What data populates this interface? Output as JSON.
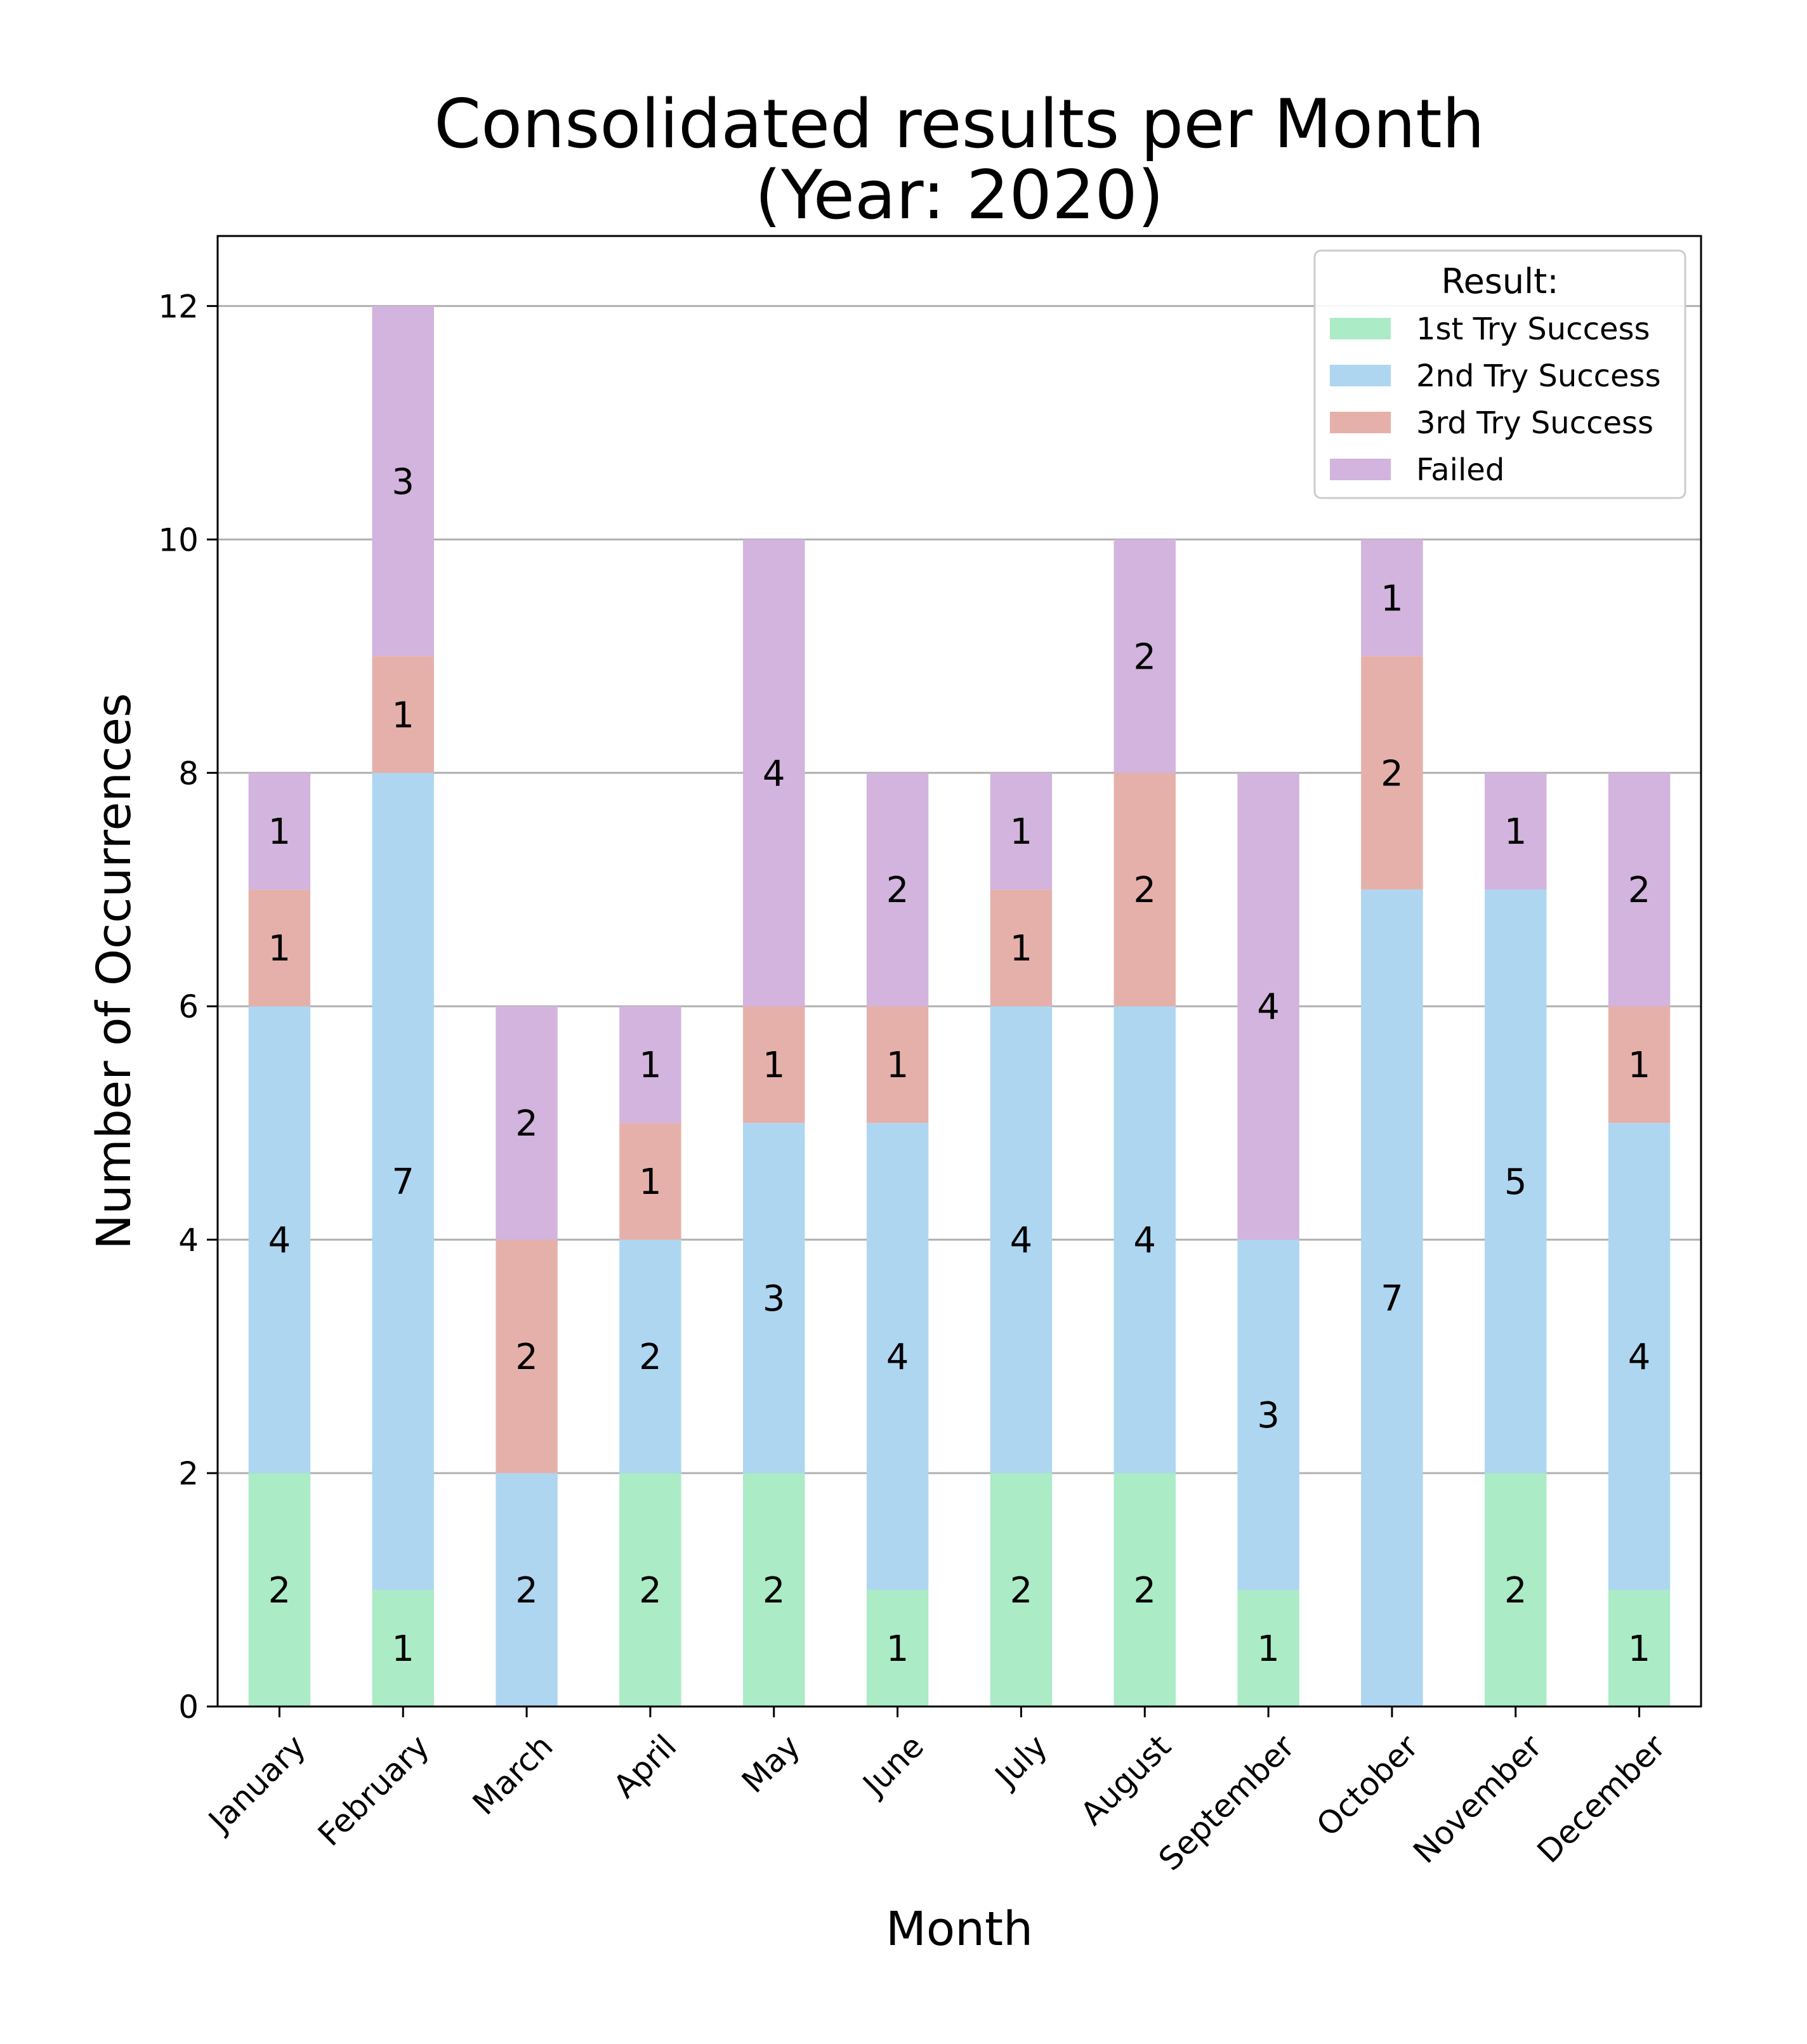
{
  "chart_data": {
    "type": "bar",
    "stacked": true,
    "title_lines": [
      "Consolidated results per Month",
      "(Year: 2020)"
    ],
    "xlabel": "Month",
    "ylabel": "Number of Occurrences",
    "categories": [
      "January",
      "February",
      "March",
      "April",
      "May",
      "June",
      "July",
      "August",
      "September",
      "October",
      "November",
      "December"
    ],
    "ylim": [
      0,
      12.6
    ],
    "yticks": [
      0,
      2,
      4,
      6,
      8,
      10,
      12
    ],
    "grid": "horizontal",
    "legend": {
      "title": "Result:",
      "placement": "top-right"
    },
    "series": [
      {
        "name": "1st Try Success",
        "color": "#abebc6",
        "values": [
          2,
          1,
          0,
          2,
          2,
          1,
          2,
          2,
          1,
          0,
          2,
          1
        ]
      },
      {
        "name": "2nd Try Success",
        "color": "#aed6f1",
        "values": [
          4,
          7,
          2,
          2,
          3,
          4,
          4,
          4,
          3,
          7,
          5,
          4
        ]
      },
      {
        "name": "3rd Try Success",
        "color": "#e6b0aa",
        "values": [
          1,
          1,
          2,
          1,
          1,
          1,
          1,
          2,
          0,
          2,
          0,
          1
        ]
      },
      {
        "name": "Failed",
        "color": "#d2b4de",
        "values": [
          1,
          3,
          2,
          1,
          4,
          2,
          1,
          2,
          4,
          1,
          1,
          2
        ]
      }
    ]
  }
}
